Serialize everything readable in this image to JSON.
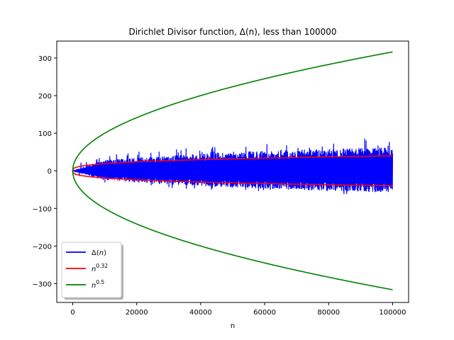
{
  "chart_data": {
    "type": "line",
    "title": "Dirichlet Divisor function, Δ(n), less than 100000",
    "xlabel": "n",
    "ylabel": "",
    "xlim": [
      -5000,
      105000
    ],
    "ylim": [
      -350,
      345
    ],
    "xticks": [
      0,
      20000,
      40000,
      60000,
      80000,
      100000
    ],
    "yticks": [
      -300,
      -200,
      -100,
      0,
      100,
      200,
      300
    ],
    "xtick_labels": [
      "0",
      "20000",
      "40000",
      "60000",
      "80000",
      "100000"
    ],
    "ytick_labels": [
      "−300",
      "−200",
      "−100",
      "0",
      "100",
      "200",
      "300"
    ],
    "grid": false,
    "legend_position": "lower-left",
    "series": [
      {
        "name": "Δ(n)",
        "name_base": "Δ(",
        "name_italic": "n",
        "name_close": ")",
        "color": "#0000ff",
        "kind": "noisy-envelope",
        "x": [
          0,
          10000,
          20000,
          30000,
          40000,
          50000,
          60000,
          70000,
          80000,
          90000,
          100000
        ],
        "upper": [
          0,
          28,
          35,
          40,
          45,
          50,
          52,
          55,
          58,
          60,
          62
        ],
        "lower": [
          0,
          -25,
          -30,
          -36,
          -40,
          -44,
          -47,
          -50,
          -53,
          -55,
          -56
        ],
        "peak_max": [
          18,
          40,
          50,
          60,
          60,
          70,
          70,
          76,
          75,
          86,
          85
        ],
        "peak_min": [
          -12,
          -30,
          -40,
          -45,
          -52,
          -52,
          -55,
          -58,
          -64,
          -62,
          -60
        ]
      },
      {
        "name": "n^0.32",
        "name_base": "n",
        "name_sup": "0.32",
        "color": "#ff0000",
        "kind": "power-pm",
        "exponent": 0.32
      },
      {
        "name": "n^0.5",
        "name_base": "n",
        "name_sup": "0.5",
        "color": "#008000",
        "kind": "power-pm",
        "exponent": 0.5
      }
    ]
  }
}
